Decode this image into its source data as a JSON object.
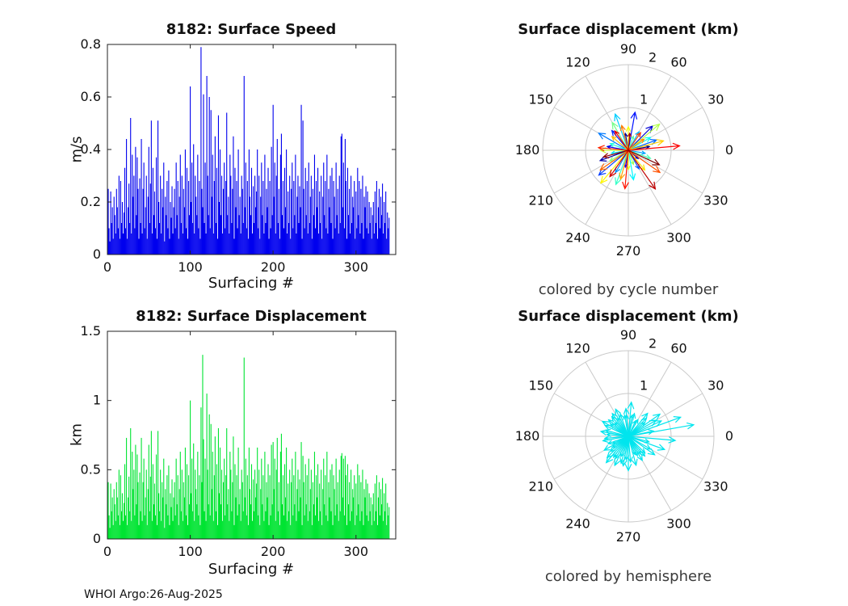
{
  "figure": {
    "footer": "WHOI Argo:26-Aug-2025"
  },
  "chart_data": [
    {
      "type": "bar",
      "id": "surface-speed",
      "title": "8182: Surface Speed",
      "xlabel": "Surfacing #",
      "ylabel": "m/s",
      "xlim": [
        0,
        348
      ],
      "ylim": [
        0,
        0.8
      ],
      "xticks": [
        0,
        100,
        200,
        300
      ],
      "yticks": [
        0,
        0.2,
        0.4,
        0.6,
        0.8
      ],
      "bar_color": "#0000ee",
      "values": [
        0.25,
        0.1,
        0.05,
        0.24,
        0.12,
        0.18,
        0.06,
        0.22,
        0.15,
        0.08,
        0.25,
        0.18,
        0.1,
        0.3,
        0.06,
        0.28,
        0.12,
        0.2,
        0.08,
        0.16,
        0.33,
        0.1,
        0.44,
        0.06,
        0.18,
        0.27,
        0.12,
        0.52,
        0.08,
        0.38,
        0.22,
        0.3,
        0.1,
        0.41,
        0.15,
        0.37,
        0.25,
        0.06,
        0.29,
        0.12,
        0.44,
        0.08,
        0.25,
        0.35,
        0.1,
        0.18,
        0.3,
        0.06,
        0.22,
        0.41,
        0.12,
        0.27,
        0.51,
        0.08,
        0.33,
        0.15,
        0.24,
        0.1,
        0.37,
        0.06,
        0.51,
        0.2,
        0.12,
        0.3,
        0.08,
        0.25,
        0.18,
        0.35,
        0.05,
        0.22,
        0.15,
        0.28,
        0.1,
        0.32,
        0.06,
        0.2,
        0.14,
        0.26,
        0.08,
        0.18,
        0.25,
        0.1,
        0.35,
        0.15,
        0.28,
        0.06,
        0.22,
        0.38,
        0.12,
        0.3,
        0.08,
        0.25,
        0.18,
        0.4,
        0.1,
        0.33,
        0.06,
        0.28,
        0.15,
        0.64,
        0.2,
        0.35,
        0.12,
        0.42,
        0.08,
        0.3,
        0.22,
        0.15,
        0.38,
        0.1,
        0.28,
        0.06,
        0.79,
        0.25,
        0.18,
        0.61,
        0.12,
        0.35,
        0.08,
        0.68,
        0.3,
        0.15,
        0.6,
        0.1,
        0.55,
        0.22,
        0.38,
        0.08,
        0.28,
        0.45,
        0.12,
        0.33,
        0.06,
        0.53,
        0.2,
        0.4,
        0.15,
        0.3,
        0.08,
        0.25,
        0.35,
        0.1,
        0.28,
        0.54,
        0.15,
        0.22,
        0.08,
        0.38,
        0.3,
        0.12,
        0.25,
        0.45,
        0.06,
        0.33,
        0.18,
        0.28,
        0.1,
        0.4,
        0.15,
        0.22,
        0.08,
        0.3,
        0.25,
        0.12,
        0.68,
        0.18,
        0.35,
        0.1,
        0.28,
        0.06,
        0.4,
        0.22,
        0.15,
        0.33,
        0.08,
        0.26,
        0.12,
        0.3,
        0.18,
        0.24,
        0.4,
        0.1,
        0.3,
        0.06,
        0.22,
        0.35,
        0.15,
        0.28,
        0.08,
        0.38,
        0.12,
        0.25,
        0.18,
        0.33,
        0.06,
        0.28,
        0.1,
        0.41,
        0.15,
        0.57,
        0.22,
        0.35,
        0.08,
        0.3,
        0.44,
        0.12,
        0.25,
        0.06,
        0.38,
        0.46,
        0.15,
        0.28,
        0.1,
        0.33,
        0.18,
        0.4,
        0.08,
        0.24,
        0.12,
        0.3,
        0.06,
        0.25,
        0.35,
        0.1,
        0.28,
        0.15,
        0.38,
        0.08,
        0.22,
        0.3,
        0.12,
        0.26,
        0.18,
        0.57,
        0.06,
        0.51,
        0.25,
        0.1,
        0.33,
        0.15,
        0.28,
        0.08,
        0.35,
        0.12,
        0.22,
        0.3,
        0.06,
        0.25,
        0.15,
        0.38,
        0.1,
        0.28,
        0.18,
        0.33,
        0.08,
        0.24,
        0.12,
        0.3,
        0.06,
        0.22,
        0.35,
        0.15,
        0.28,
        0.1,
        0.38,
        0.08,
        0.25,
        0.18,
        0.3,
        0.12,
        0.33,
        0.06,
        0.28,
        0.22,
        0.1,
        0.35,
        0.15,
        0.25,
        0.08,
        0.3,
        0.12,
        0.45,
        0.46,
        0.18,
        0.35,
        0.1,
        0.44,
        0.28,
        0.06,
        0.33,
        0.15,
        0.25,
        0.08,
        0.3,
        0.12,
        0.22,
        0.18,
        0.28,
        0.06,
        0.24,
        0.1,
        0.33,
        0.15,
        0.28,
        0.08,
        0.25,
        0.12,
        0.3,
        0.06,
        0.22,
        0.18,
        0.26,
        0.1,
        0.24,
        0.08,
        0.2,
        0.12,
        0.18,
        0.06,
        0.15,
        0.2,
        0.08,
        0.24,
        0.12,
        0.28,
        0.06,
        0.18,
        0.25,
        0.1,
        0.22,
        0.15,
        0.27,
        0.08,
        0.2,
        0.12,
        0.24,
        0.06,
        0.16,
        0.1,
        0.14
      ]
    },
    {
      "type": "bar",
      "id": "surface-displacement",
      "title": "8182: Surface Displacement",
      "xlabel": "Surfacing #",
      "ylabel": "km",
      "xlim": [
        0,
        348
      ],
      "ylim": [
        0,
        1.5
      ],
      "xticks": [
        0,
        100,
        200,
        300
      ],
      "yticks": [
        0,
        0.5,
        1,
        1.5
      ],
      "bar_color": "#00e432",
      "values": [
        0.41,
        0.17,
        0.08,
        0.4,
        0.2,
        0.3,
        0.1,
        0.36,
        0.25,
        0.13,
        0.41,
        0.3,
        0.17,
        0.5,
        0.1,
        0.46,
        0.2,
        0.33,
        0.13,
        0.26,
        0.54,
        0.17,
        0.73,
        0.1,
        0.3,
        0.45,
        0.2,
        0.8,
        0.13,
        0.63,
        0.36,
        0.5,
        0.17,
        0.68,
        0.25,
        0.61,
        0.41,
        0.1,
        0.48,
        0.2,
        0.73,
        0.13,
        0.41,
        0.58,
        0.17,
        0.3,
        0.5,
        0.1,
        0.36,
        0.68,
        0.2,
        0.45,
        0.78,
        0.13,
        0.54,
        0.25,
        0.4,
        0.17,
        0.61,
        0.1,
        0.78,
        0.33,
        0.2,
        0.5,
        0.13,
        0.41,
        0.3,
        0.58,
        0.08,
        0.36,
        0.25,
        0.46,
        0.17,
        0.53,
        0.1,
        0.33,
        0.23,
        0.43,
        0.13,
        0.3,
        0.41,
        0.17,
        0.58,
        0.25,
        0.46,
        0.1,
        0.36,
        0.63,
        0.2,
        0.5,
        0.13,
        0.41,
        0.3,
        0.66,
        0.17,
        0.54,
        0.1,
        0.46,
        0.25,
        1.0,
        0.33,
        0.58,
        0.2,
        0.69,
        0.13,
        0.5,
        0.36,
        0.25,
        0.63,
        0.17,
        0.46,
        0.1,
        0.95,
        0.41,
        1.33,
        0.72,
        0.2,
        0.58,
        0.13,
        1.05,
        0.5,
        0.25,
        0.9,
        0.17,
        0.83,
        0.36,
        0.63,
        0.13,
        0.46,
        0.74,
        0.2,
        0.54,
        0.1,
        0.8,
        0.33,
        0.66,
        0.25,
        0.5,
        0.13,
        0.41,
        0.58,
        0.17,
        0.46,
        0.8,
        0.25,
        0.36,
        0.13,
        0.63,
        0.5,
        0.2,
        0.41,
        0.74,
        0.1,
        0.54,
        0.3,
        0.46,
        0.17,
        0.66,
        0.25,
        0.36,
        0.13,
        0.5,
        0.41,
        0.2,
        1.31,
        0.3,
        0.58,
        0.17,
        0.46,
        0.1,
        0.66,
        0.36,
        0.25,
        0.54,
        0.13,
        0.43,
        0.2,
        0.5,
        0.3,
        0.4,
        0.66,
        0.17,
        0.5,
        0.1,
        0.36,
        0.58,
        0.25,
        0.46,
        0.13,
        0.63,
        0.2,
        0.41,
        0.3,
        0.54,
        0.1,
        0.46,
        0.17,
        0.68,
        0.25,
        0.7,
        0.36,
        0.58,
        0.13,
        0.5,
        0.73,
        0.2,
        0.41,
        0.1,
        0.63,
        0.76,
        0.25,
        0.46,
        0.17,
        0.54,
        0.3,
        0.66,
        0.13,
        0.4,
        0.2,
        0.5,
        0.1,
        0.41,
        0.58,
        0.17,
        0.46,
        0.25,
        0.63,
        0.13,
        0.36,
        0.5,
        0.2,
        0.43,
        0.3,
        0.7,
        0.1,
        0.6,
        0.41,
        0.17,
        0.54,
        0.25,
        0.46,
        0.13,
        0.58,
        0.2,
        0.36,
        0.5,
        0.1,
        0.41,
        0.25,
        0.63,
        0.17,
        0.46,
        0.3,
        0.54,
        0.13,
        0.4,
        0.2,
        0.5,
        0.1,
        0.36,
        0.58,
        0.25,
        0.46,
        0.17,
        0.63,
        0.13,
        0.41,
        0.3,
        0.5,
        0.2,
        0.54,
        0.1,
        0.46,
        0.36,
        0.17,
        0.58,
        0.25,
        0.41,
        0.13,
        0.5,
        0.2,
        0.6,
        0.62,
        0.3,
        0.58,
        0.17,
        0.6,
        0.46,
        0.1,
        0.54,
        0.25,
        0.41,
        0.13,
        0.5,
        0.2,
        0.36,
        0.3,
        0.46,
        0.1,
        0.4,
        0.17,
        0.54,
        0.25,
        0.46,
        0.13,
        0.41,
        0.2,
        0.5,
        0.1,
        0.36,
        0.3,
        0.43,
        0.17,
        0.4,
        0.13,
        0.33,
        0.2,
        0.3,
        0.1,
        0.25,
        0.33,
        0.13,
        0.4,
        0.2,
        0.46,
        0.1,
        0.3,
        0.41,
        0.17,
        0.36,
        0.25,
        0.44,
        0.13,
        0.33,
        0.2,
        0.4,
        0.1,
        0.26,
        0.17,
        0.23
      ]
    },
    {
      "type": "compass",
      "id": "polar-cycle",
      "title": "Surface displacement (km)",
      "caption": "colored by cycle number",
      "rmax": 2,
      "rticks": [
        1,
        2
      ],
      "angle_labels": [
        0,
        30,
        60,
        90,
        120,
        150,
        180,
        210,
        240,
        270,
        300,
        330
      ],
      "color_mode": "jet",
      "arrows": [
        [
          10,
          0.5
        ],
        [
          100,
          0.4
        ],
        [
          200,
          0.7
        ],
        [
          320,
          0.3
        ],
        [
          45,
          0.8
        ],
        [
          170,
          0.5
        ],
        [
          260,
          0.4
        ],
        [
          80,
          0.9
        ],
        [
          130,
          0.6
        ],
        [
          220,
          0.9
        ],
        [
          300,
          0.5
        ],
        [
          20,
          0.7
        ],
        [
          150,
          0.8
        ],
        [
          240,
          0.6
        ],
        [
          350,
          0.4
        ],
        [
          60,
          0.5
        ],
        [
          110,
          0.9
        ],
        [
          190,
          0.4
        ],
        [
          280,
          0.7
        ],
        [
          30,
          0.6
        ],
        [
          160,
          0.45
        ],
        [
          250,
          0.85
        ],
        [
          340,
          0.55
        ],
        [
          70,
          0.35
        ],
        [
          120,
          0.75
        ],
        [
          210,
          0.5
        ],
        [
          290,
          0.35
        ],
        [
          40,
          0.95
        ],
        [
          180,
          0.65
        ],
        [
          270,
          0.45
        ],
        [
          90,
          0.55
        ],
        [
          230,
          1.0
        ],
        [
          310,
          0.6
        ],
        [
          15,
          0.85
        ],
        [
          140,
          0.5
        ],
        [
          255,
          0.7
        ],
        [
          35,
          0.45
        ],
        [
          105,
          0.6
        ],
        [
          215,
          0.8
        ],
        [
          325,
          0.9
        ],
        [
          55,
          0.5
        ],
        [
          175,
          0.7
        ],
        [
          265,
          0.9
        ],
        [
          5,
          1.2
        ],
        [
          125,
          0.55
        ],
        [
          235,
          0.75
        ],
        [
          305,
          1.1
        ],
        [
          85,
          0.4
        ],
        [
          195,
          0.6
        ],
        [
          335,
          0.8
        ]
      ]
    },
    {
      "type": "compass",
      "id": "polar-hemisphere",
      "title": "Surface displacement (km)",
      "caption": "colored by hemisphere",
      "rmax": 2,
      "rticks": [
        1,
        2
      ],
      "angle_labels": [
        0,
        30,
        60,
        90,
        120,
        150,
        180,
        210,
        240,
        270,
        300,
        330
      ],
      "color_mode": "single",
      "arrow_color": "#00e5ee",
      "arrows": [
        [
          12,
          0.6
        ],
        [
          95,
          0.5
        ],
        [
          205,
          0.4
        ],
        [
          310,
          0.6
        ],
        [
          50,
          0.7
        ],
        [
          165,
          0.55
        ],
        [
          255,
          0.65
        ],
        [
          85,
          0.8
        ],
        [
          135,
          0.45
        ],
        [
          225,
          0.7
        ],
        [
          295,
          0.5
        ],
        [
          25,
          0.85
        ],
        [
          155,
          0.6
        ],
        [
          245,
          0.75
        ],
        [
          345,
          0.5
        ],
        [
          65,
          0.4
        ],
        [
          115,
          0.7
        ],
        [
          185,
          0.55
        ],
        [
          275,
          0.6
        ],
        [
          35,
          0.9
        ],
        [
          145,
          0.5
        ],
        [
          235,
          0.6
        ],
        [
          325,
          0.75
        ],
        [
          75,
          0.55
        ],
        [
          125,
          0.65
        ],
        [
          215,
          0.45
        ],
        [
          285,
          0.7
        ],
        [
          45,
          0.6
        ],
        [
          175,
          0.5
        ],
        [
          265,
          0.55
        ],
        [
          95,
          0.65
        ],
        [
          230,
          0.8
        ],
        [
          315,
          0.55
        ],
        [
          10,
          1.55
        ],
        [
          140,
          0.6
        ],
        [
          250,
          0.5
        ],
        [
          30,
          0.75
        ],
        [
          100,
          0.5
        ],
        [
          210,
          0.65
        ],
        [
          330,
          0.6
        ],
        [
          60,
          0.45
        ],
        [
          170,
          0.65
        ],
        [
          260,
          0.7
        ],
        [
          20,
          1.3
        ],
        [
          120,
          0.5
        ],
        [
          240,
          0.6
        ],
        [
          300,
          0.65
        ],
        [
          80,
          0.5
        ],
        [
          190,
          0.6
        ],
        [
          340,
          0.9
        ],
        [
          110,
          0.55
        ],
        [
          200,
          0.5
        ],
        [
          290,
          0.45
        ],
        [
          355,
          1.1
        ],
        [
          150,
          0.7
        ],
        [
          270,
          0.8
        ],
        [
          40,
          0.5
        ],
        [
          130,
          0.6
        ],
        [
          220,
          0.55
        ],
        [
          305,
          0.5
        ]
      ]
    }
  ]
}
